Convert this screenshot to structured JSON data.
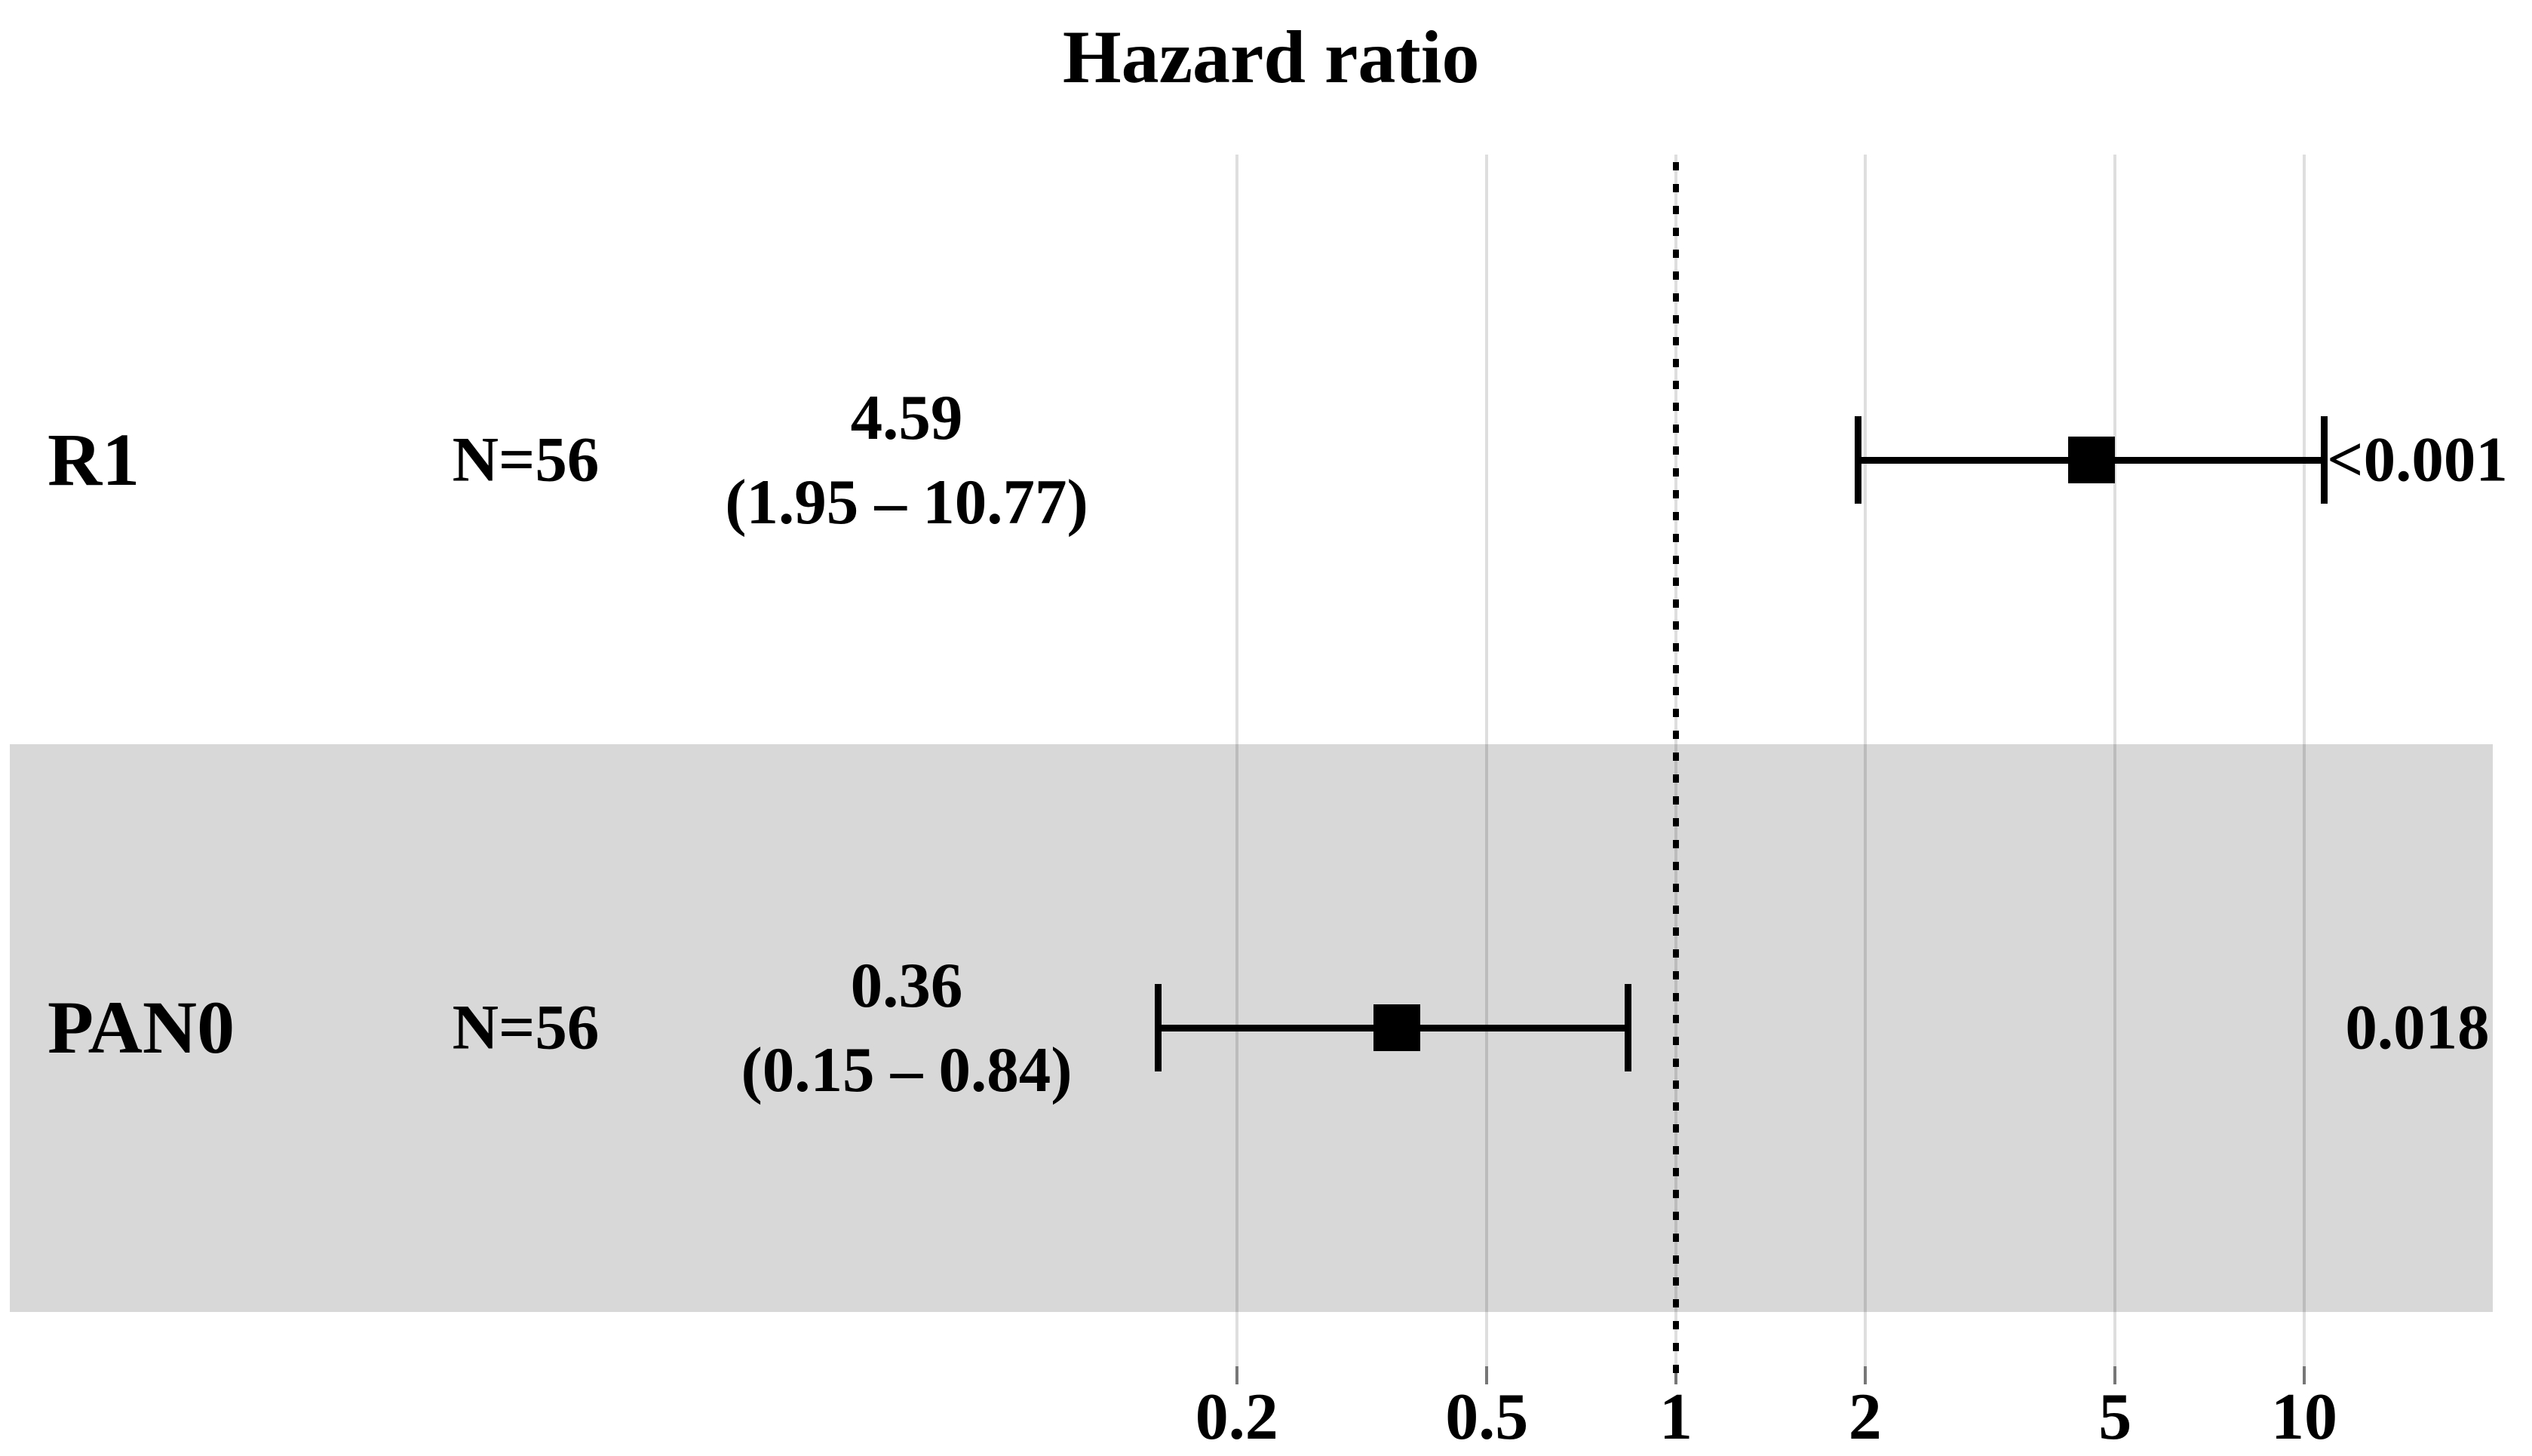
{
  "chart_data": {
    "type": "forest",
    "title": "Hazard ratio",
    "x_scale": "log10",
    "x_axis": {
      "ticks": [
        0.2,
        0.5,
        1,
        2,
        5,
        10
      ],
      "tick_labels": [
        "0.2",
        "0.5",
        "1",
        "2",
        "5",
        "10"
      ],
      "range": [
        0.13,
        18
      ],
      "grid": true
    },
    "reference_line": 1,
    "rows": [
      {
        "label": "R1",
        "n_label": "N=56",
        "estimate": 4.59,
        "ci_low": 1.95,
        "ci_high": 10.77,
        "estimate_label": "4.59",
        "ci_label": "(1.95 – 10.77)",
        "p_label": "<0.001",
        "shaded": false
      },
      {
        "label": "PAN0",
        "n_label": "N=56",
        "estimate": 0.36,
        "ci_low": 0.15,
        "ci_high": 0.84,
        "estimate_label": "0.36",
        "ci_label": "(0.15 – 0.84)",
        "p_label": "0.018",
        "shaded": true
      }
    ],
    "legend": null,
    "colors": {
      "marker": "#000000",
      "line": "#000000",
      "shaded_band": "#d8d8d8",
      "gridline": "rgba(0,0,0,0.13)",
      "text": "#000000",
      "background": "#ffffff"
    }
  }
}
